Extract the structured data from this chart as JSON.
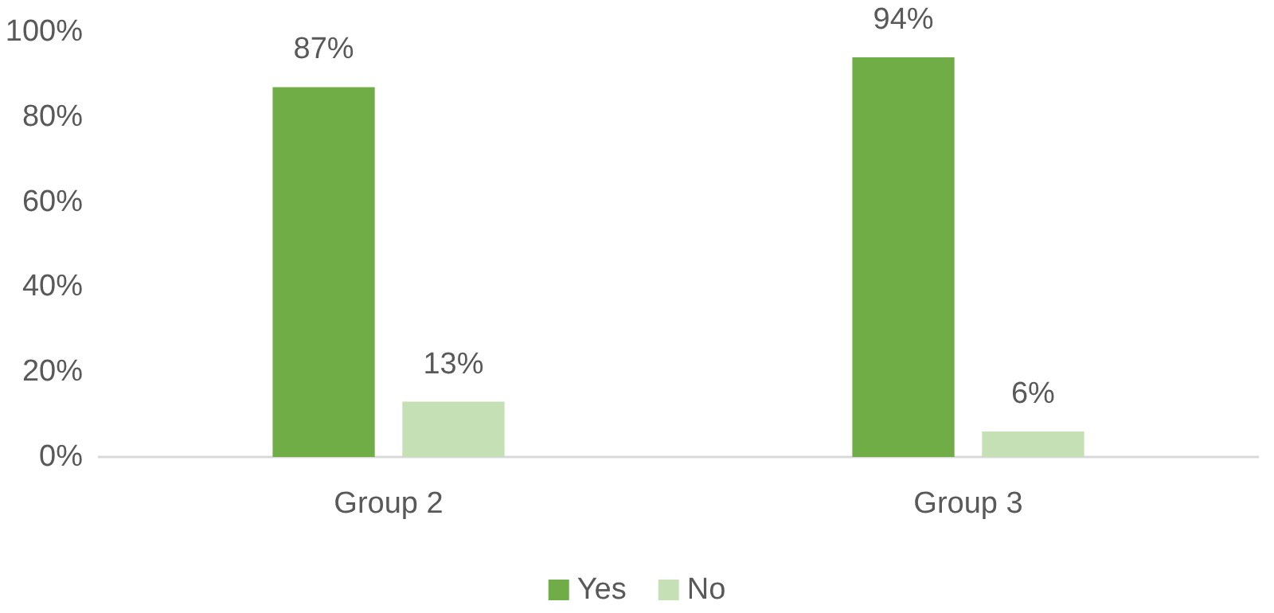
{
  "chart_data": {
    "type": "bar",
    "categories": [
      "Group 2",
      "Group 3"
    ],
    "series": [
      {
        "name": "Yes",
        "color": "#70ad47",
        "values": [
          87,
          94
        ],
        "value_labels": [
          "87%",
          "94%"
        ]
      },
      {
        "name": "No",
        "color": "#c5e0b4",
        "values": [
          13,
          6
        ],
        "value_labels": [
          "13%",
          "6%"
        ]
      }
    ],
    "ylim": [
      0,
      100
    ],
    "yticks": [
      {
        "value": 0,
        "label": "0%"
      },
      {
        "value": 20,
        "label": "20%"
      },
      {
        "value": 40,
        "label": "40%"
      },
      {
        "value": 60,
        "label": "60%"
      },
      {
        "value": 80,
        "label": "80%"
      },
      {
        "value": 100,
        "label": "100%"
      }
    ],
    "grid": false,
    "legend": "bottom"
  }
}
